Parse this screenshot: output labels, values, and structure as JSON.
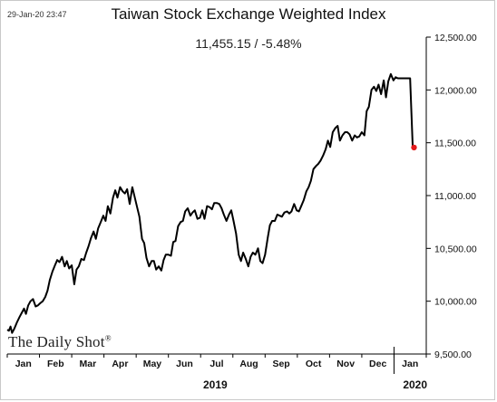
{
  "timestamp": "29-Jan-20 23:47",
  "brand": {
    "name": "The Daily Shot",
    "mark": "®"
  },
  "chart_data": {
    "type": "line",
    "title": "Taiwan Stock Exchange Weighted Index",
    "subtitle": "11,455.15  /  -5.48%",
    "xlabel": "",
    "ylabel": "",
    "ylim": [
      9500,
      12500
    ],
    "y_axis_side": "right",
    "yticks": [
      9500,
      10000,
      10500,
      11000,
      11500,
      12000,
      12500
    ],
    "ytick_labels": [
      "9,500.00",
      "10,000.00",
      "10,500.00",
      "11,000.00",
      "11,500.00",
      "12,000.00",
      "12,500.00"
    ],
    "month_ticks": [
      {
        "label": "Jan",
        "x": 0.5
      },
      {
        "label": "Feb",
        "x": 1.5
      },
      {
        "label": "Mar",
        "x": 2.5
      },
      {
        "label": "Apr",
        "x": 3.5
      },
      {
        "label": "May",
        "x": 4.5
      },
      {
        "label": "Jun",
        "x": 5.5
      },
      {
        "label": "Jul",
        "x": 6.5
      },
      {
        "label": "Aug",
        "x": 7.5
      },
      {
        "label": "Sep",
        "x": 8.5
      },
      {
        "label": "Oct",
        "x": 9.5
      },
      {
        "label": "Nov",
        "x": 10.5
      },
      {
        "label": "Dec",
        "x": 11.5
      },
      {
        "label": "Jan",
        "x": 12.5
      }
    ],
    "year_labels": [
      {
        "label": "2019",
        "x": 6.5
      },
      {
        "label": "2020",
        "x": 12.7
      }
    ],
    "year_divider_x": 12,
    "xlim": [
      0,
      13.0
    ],
    "grid": false,
    "legend": "none",
    "series": [
      {
        "color": "#000000",
        "x": [
          0.0,
          0.05,
          0.1,
          0.15,
          0.22,
          0.3,
          0.38,
          0.45,
          0.52,
          0.58,
          0.65,
          0.72,
          0.8,
          0.88,
          0.95,
          1.02,
          1.1,
          1.18,
          1.25,
          1.32,
          1.4,
          1.48,
          1.55,
          1.62,
          1.7,
          1.78,
          1.85,
          1.92,
          2.0,
          2.08,
          2.15,
          2.22,
          2.3,
          2.38,
          2.45,
          2.52,
          2.6,
          2.68,
          2.75,
          2.82,
          2.9,
          2.98,
          3.05,
          3.12,
          3.2,
          3.28,
          3.35,
          3.42,
          3.5,
          3.58,
          3.65,
          3.72,
          3.8,
          3.88,
          3.95,
          4.02,
          4.1,
          4.18,
          4.25,
          4.32,
          4.4,
          4.48,
          4.55,
          4.62,
          4.7,
          4.78,
          4.85,
          4.92,
          5.0,
          5.08,
          5.15,
          5.22,
          5.3,
          5.38,
          5.45,
          5.52,
          5.6,
          5.68,
          5.75,
          5.82,
          5.9,
          5.98,
          6.05,
          6.12,
          6.2,
          6.28,
          6.35,
          6.42,
          6.5,
          6.58,
          6.65,
          6.72,
          6.8,
          6.88,
          6.95,
          7.02,
          7.1,
          7.18,
          7.25,
          7.32,
          7.4,
          7.48,
          7.55,
          7.62,
          7.7,
          7.78,
          7.85,
          7.92,
          8.0,
          8.08,
          8.15,
          8.22,
          8.3,
          8.38,
          8.45,
          8.52,
          8.6,
          8.68,
          8.75,
          8.82,
          8.9,
          8.98,
          9.05,
          9.12,
          9.2,
          9.28,
          9.35,
          9.42,
          9.5,
          9.58,
          9.65,
          9.72,
          9.8,
          9.88,
          9.95,
          10.02,
          10.1,
          10.18,
          10.25,
          10.32,
          10.4,
          10.48,
          10.55,
          10.62,
          10.7,
          10.78,
          10.85,
          10.92,
          11.0,
          11.08,
          11.15,
          11.22,
          11.3,
          11.38,
          11.45,
          11.52,
          11.6,
          11.68,
          11.75,
          11.82,
          11.9,
          11.98,
          12.05,
          12.12,
          12.2,
          12.28,
          12.35,
          12.42,
          12.5,
          12.58,
          12.62
        ],
        "values": [
          9730,
          9720,
          9760,
          9700,
          9740,
          9800,
          9850,
          9890,
          9930,
          9880,
          9960,
          10000,
          10020,
          9950,
          9960,
          9980,
          10000,
          10040,
          10100,
          10200,
          10280,
          10340,
          10390,
          10370,
          10420,
          10330,
          10380,
          10310,
          10340,
          10160,
          10300,
          10330,
          10400,
          10390,
          10460,
          10520,
          10600,
          10660,
          10590,
          10690,
          10750,
          10810,
          10760,
          10900,
          10830,
          10980,
          11050,
          10980,
          11080,
          11040,
          11020,
          11060,
          10920,
          11080,
          10990,
          10900,
          10800,
          10590,
          10550,
          10410,
          10330,
          10380,
          10380,
          10300,
          10330,
          10290,
          10390,
          10440,
          10440,
          10430,
          10560,
          10570,
          10710,
          10750,
          10760,
          10850,
          10880,
          10810,
          10840,
          10860,
          10780,
          10790,
          10860,
          10780,
          10900,
          10890,
          10870,
          10930,
          10930,
          10920,
          10880,
          10820,
          10760,
          10820,
          10860,
          10760,
          10640,
          10440,
          10380,
          10460,
          10400,
          10330,
          10420,
          10460,
          10440,
          10500,
          10380,
          10360,
          10440,
          10600,
          10720,
          10760,
          10760,
          10820,
          10810,
          10800,
          10840,
          10850,
          10830,
          10850,
          10920,
          10860,
          10850,
          10900,
          10960,
          11040,
          11080,
          11140,
          11250,
          11280,
          11300,
          11330,
          11380,
          11440,
          11520,
          11460,
          11600,
          11640,
          11660,
          11520,
          11570,
          11600,
          11600,
          11580,
          11520,
          11570,
          11550,
          11560,
          11600,
          11570,
          11800,
          11840,
          12000,
          12030,
          11990,
          12050,
          11960,
          12090,
          11930,
          12080,
          12150,
          12090,
          12120,
          12110,
          12110,
          12110,
          12110,
          12110,
          12110,
          11455,
          11455
        ]
      }
    ],
    "last_point": {
      "x": 12.62,
      "value": 11455.15,
      "color": "#e31a1c"
    }
  }
}
